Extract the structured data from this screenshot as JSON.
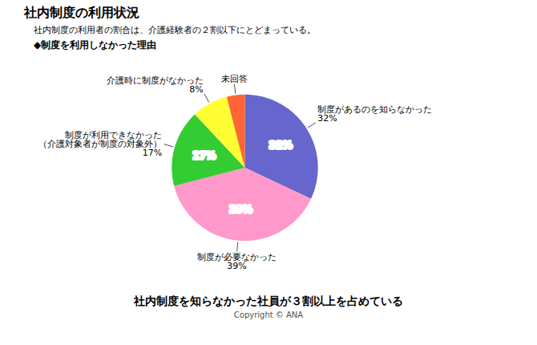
{
  "chart_data": {
    "type": "pie",
    "title": "社内制度の利用状況",
    "subtitle": "社内制度の利用者の割合は、介護経験者の２割以下にとどまっている。",
    "annotations": [
      "◆制度を利用しなかった理由",
      "社内制度を知らなかった社員が３割以上を占めている",
      "Copyright © ANA"
    ],
    "categories": [
      "制度があるのを知らなかった",
      "制度が必要なかった",
      "制度が利用できなかった\n（介護対象者が制度の対象外）",
      "介護時に制度がなかった",
      "未回答"
    ],
    "values": [
      32,
      39,
      17,
      8,
      4
    ],
    "value_labels": [
      "32%",
      "39%",
      "17%",
      "8%",
      null
    ],
    "inside_labels": [
      "32%",
      "39%",
      "17%",
      null,
      null
    ],
    "colors": [
      "#6666cc",
      "#ff99cc",
      "#33cc33",
      "#ffff33",
      "#ff6633"
    ],
    "data_labels": true
  }
}
